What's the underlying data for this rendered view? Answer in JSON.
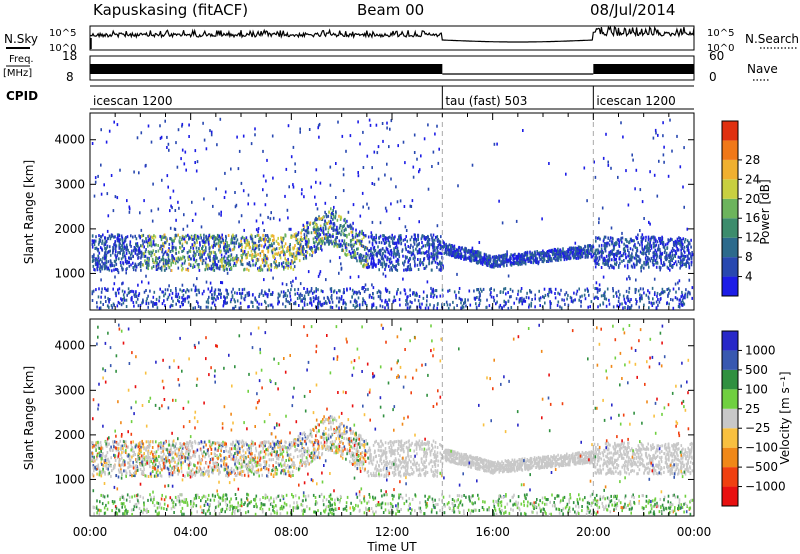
{
  "header": {
    "station": "Kapuskasing (fitACF)",
    "beam": "Beam 00",
    "date": "08/Jul/2014"
  },
  "top_panels": {
    "nsky_label": "N.Sky",
    "nsky_ticks": [
      "10^5",
      "10^0"
    ],
    "nsearch_label": "N.Search",
    "nsearch_ticks": [
      "10^5",
      "10^0"
    ],
    "freq_label": "Freq.",
    "freq_unit": "[MHz]",
    "freq_ticks": [
      "18",
      "8"
    ],
    "nave_label": "Nave",
    "nave_ticks": [
      "60",
      "0"
    ],
    "cpid_label": "CPID",
    "cpid_segments": [
      {
        "label": "icescan 1200",
        "start_h": 0,
        "end_h": 14
      },
      {
        "label": "tau (fast) 503",
        "start_h": 14,
        "end_h": 20
      },
      {
        "label": "icescan 1200",
        "start_h": 20,
        "end_h": 24
      }
    ]
  },
  "colors": {
    "power": [
      "#1c1ce6",
      "#2848b0",
      "#2c6a8c",
      "#3c8c6c",
      "#6cb45c",
      "#c8d040",
      "#f0b030",
      "#f07818",
      "#e03010"
    ],
    "velocity": [
      "#e81010",
      "#f04010",
      "#f08818",
      "#f8c040",
      "#c8c8c8",
      "#70d040",
      "#309040",
      "#3858b0",
      "#2828c8"
    ]
  },
  "chart_data": [
    {
      "type": "heatmap",
      "title": "",
      "xlabel": "",
      "ylabel": "Slant Range [km]",
      "xlim_h": [
        0,
        24
      ],
      "ylim": [
        180,
        4600
      ],
      "x_ticks": [
        "00:00",
        "04:00",
        "08:00",
        "12:00",
        "16:00",
        "20:00",
        "00:00"
      ],
      "y_ticks": [
        1000,
        2000,
        3000,
        4000
      ],
      "colorbar_label": "Power [dB]",
      "colorbar_ticks": [
        "4",
        "8",
        "12",
        "16",
        "20",
        "24",
        "28"
      ]
    },
    {
      "type": "heatmap",
      "title": "",
      "xlabel": "Time UT",
      "ylabel": "Slant Range [km]",
      "xlim_h": [
        0,
        24
      ],
      "ylim": [
        180,
        4600
      ],
      "x_ticks": [
        "00:00",
        "04:00",
        "08:00",
        "12:00",
        "16:00",
        "20:00",
        "00:00"
      ],
      "y_ticks": [
        1000,
        2000,
        3000,
        4000
      ],
      "colorbar_label": "Velocity [m s⁻¹]",
      "colorbar_ticks": [
        "1000",
        "500",
        "100",
        "25",
        "−25",
        "−100",
        "−500",
        "−1000"
      ]
    }
  ]
}
